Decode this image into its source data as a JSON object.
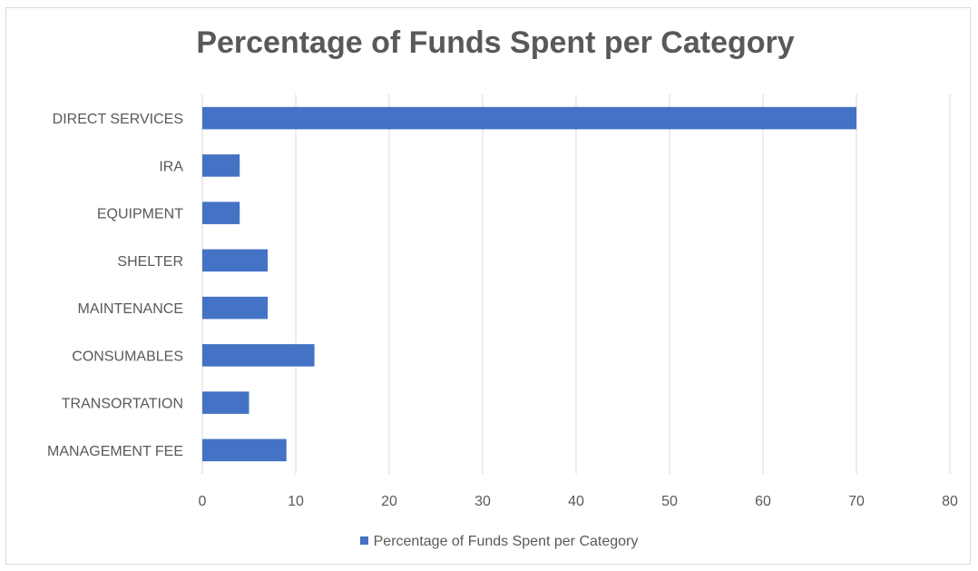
{
  "chart_data": {
    "type": "bar",
    "orientation": "horizontal",
    "title": "Percentage of Funds Spent per Category",
    "categories": [
      "DIRECT SERVICES",
      "IRA",
      "EQUIPMENT",
      "SHELTER",
      "MAINTENANCE",
      "CONSUMABLES",
      "TRANSORTATION",
      "MANAGEMENT FEE"
    ],
    "series": [
      {
        "name": "Percentage of Funds Spent per Category",
        "values": [
          70,
          4,
          4,
          7,
          7,
          12,
          5,
          9
        ],
        "color": "#4472c4"
      }
    ],
    "xlim": [
      0,
      80
    ],
    "xticks": [
      "0",
      "10",
      "20",
      "30",
      "40",
      "50",
      "60",
      "70",
      "80"
    ],
    "grid": true,
    "legend_position": "bottom"
  }
}
